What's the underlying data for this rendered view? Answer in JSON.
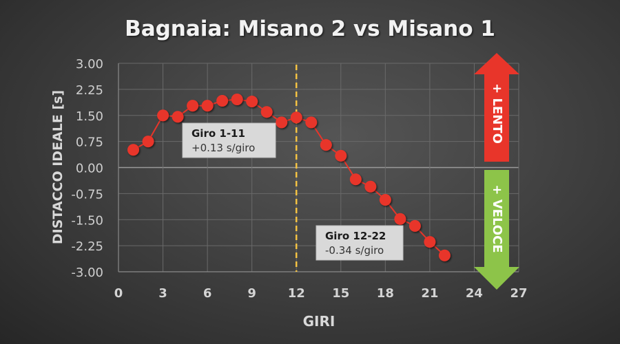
{
  "chart_data": {
    "type": "line",
    "title": "Bagnaia: Misano 2 vs Misano 1",
    "xlabel": "GIRI",
    "ylabel": "DISTACCO IDEALE [s]",
    "xlim": [
      0,
      27
    ],
    "ylim": [
      -3.0,
      3.0
    ],
    "x_ticks": [
      "0",
      "3",
      "6",
      "9",
      "12",
      "15",
      "18",
      "21",
      "24",
      "27"
    ],
    "y_ticks": [
      "3.00",
      "2.25",
      "1.50",
      "0.75",
      "0.00",
      "-0.75",
      "-1.50",
      "-2.25",
      "-3.00"
    ],
    "grid": true,
    "series": [
      {
        "name": "Distacco ideale",
        "color": "#e8352a",
        "x": [
          1,
          2,
          3,
          4,
          5,
          6,
          7,
          8,
          9,
          10,
          11,
          12,
          13,
          14,
          15,
          16,
          17,
          18,
          19,
          20,
          21,
          22
        ],
        "values": [
          0.51,
          0.75,
          1.5,
          1.46,
          1.78,
          1.78,
          1.92,
          1.96,
          1.9,
          1.6,
          1.3,
          1.44,
          1.3,
          0.65,
          0.34,
          -0.34,
          -0.55,
          -0.93,
          -1.48,
          -1.68,
          -2.14,
          -2.53
        ]
      }
    ],
    "vertical_marker": {
      "x": 12,
      "color": "#f5c342",
      "style": "dashed"
    },
    "annotations": [
      {
        "title": "Giro 1-11",
        "text": "+0.13 s/giro"
      },
      {
        "title": "Giro 12-22",
        "text": "-0.34 s/giro"
      }
    ],
    "arrows": [
      {
        "label": "+ LENTO",
        "direction": "up",
        "color": "#e8352a"
      },
      {
        "label": "+ VELOCE",
        "direction": "down",
        "color": "#8dc449"
      }
    ]
  }
}
